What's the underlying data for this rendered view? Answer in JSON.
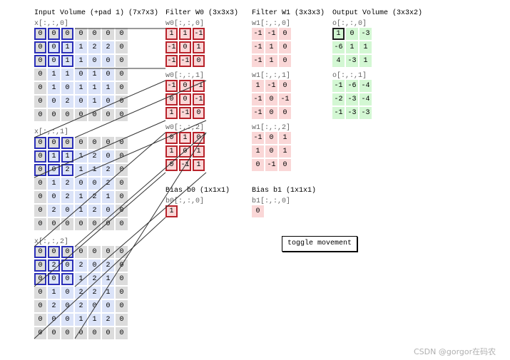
{
  "input": {
    "title": "Input Volume (+pad 1) (7x7x3)",
    "slices": [
      {
        "label": "x[:,:,0]",
        "values": [
          [
            0,
            0,
            0,
            0,
            0,
            0,
            0
          ],
          [
            0,
            0,
            1,
            1,
            2,
            2,
            0
          ],
          [
            0,
            0,
            1,
            1,
            0,
            0,
            0
          ],
          [
            0,
            1,
            1,
            0,
            1,
            0,
            0
          ],
          [
            0,
            1,
            0,
            1,
            1,
            1,
            0
          ],
          [
            0,
            0,
            2,
            0,
            1,
            0,
            0
          ],
          [
            0,
            0,
            0,
            0,
            0,
            0,
            0
          ]
        ]
      },
      {
        "label": "x[:,:,1]",
        "values": [
          [
            0,
            0,
            0,
            0,
            0,
            0,
            0
          ],
          [
            0,
            1,
            1,
            1,
            2,
            0,
            0
          ],
          [
            0,
            0,
            2,
            1,
            1,
            2,
            0
          ],
          [
            0,
            1,
            2,
            0,
            0,
            2,
            0
          ],
          [
            0,
            0,
            2,
            1,
            2,
            1,
            0
          ],
          [
            0,
            2,
            0,
            1,
            2,
            0,
            0
          ],
          [
            0,
            0,
            0,
            0,
            0,
            0,
            0
          ]
        ]
      },
      {
        "label": "x[:,:,2]",
        "values": [
          [
            0,
            0,
            0,
            0,
            0,
            0,
            0
          ],
          [
            0,
            2,
            0,
            2,
            0,
            2,
            0
          ],
          [
            0,
            0,
            0,
            1,
            2,
            1,
            0
          ],
          [
            0,
            1,
            0,
            2,
            2,
            1,
            0
          ],
          [
            0,
            2,
            0,
            2,
            0,
            0,
            0
          ],
          [
            0,
            0,
            0,
            1,
            1,
            2,
            0
          ],
          [
            0,
            0,
            0,
            0,
            0,
            0,
            0
          ]
        ]
      }
    ]
  },
  "filter_w0": {
    "title": "Filter W0 (3x3x3)",
    "slices": [
      {
        "label": "w0[:,:,0]",
        "values": [
          [
            "1",
            "1",
            "-1"
          ],
          [
            "-1",
            "0",
            "1"
          ],
          [
            "-1",
            "-1",
            "0"
          ]
        ]
      },
      {
        "label": "w0[:,:,1]",
        "values": [
          [
            "-1",
            "0",
            "-1"
          ],
          [
            "0",
            "0",
            "-1"
          ],
          [
            "1",
            "-1",
            "0"
          ]
        ]
      },
      {
        "label": "w0[:,:,2]",
        "values": [
          [
            "0",
            "1",
            "0"
          ],
          [
            "1",
            "0",
            "1"
          ],
          [
            "0",
            "-1",
            "1"
          ]
        ]
      }
    ]
  },
  "filter_w1": {
    "title": "Filter W1 (3x3x3)",
    "slices": [
      {
        "label": "w1[:,:,0]",
        "values": [
          [
            "-1",
            "-1",
            "0"
          ],
          [
            "-1",
            "1",
            "0"
          ],
          [
            "-1",
            "1",
            "0"
          ]
        ]
      },
      {
        "label": "w1[:,:,1]",
        "values": [
          [
            "1",
            "-1",
            "0"
          ],
          [
            "-1",
            "0",
            "-1"
          ],
          [
            "-1",
            "0",
            "0"
          ]
        ]
      },
      {
        "label": "w1[:,:,2]",
        "values": [
          [
            "-1",
            "0",
            "1"
          ],
          [
            "1",
            "0",
            "1"
          ],
          [
            "0",
            "-1",
            "0"
          ]
        ]
      }
    ]
  },
  "bias_b0": {
    "title": "Bias b0 (1x1x1)",
    "label": "b0[:,:,0]",
    "value": "1"
  },
  "bias_b1": {
    "title": "Bias b1 (1x1x1)",
    "label": "b1[:,:,0]",
    "value": "0"
  },
  "output": {
    "title": "Output Volume (3x3x2)",
    "slices": [
      {
        "label": "o[:,:,0]",
        "values": [
          [
            "1",
            "0",
            "-3"
          ],
          [
            "-6",
            "1",
            "1"
          ],
          [
            "4",
            "-3",
            "1"
          ]
        ]
      },
      {
        "label": "o[:,:,1]",
        "values": [
          [
            "-1",
            "-6",
            "-4"
          ],
          [
            "-2",
            "-3",
            "-4"
          ],
          [
            "-1",
            "-3",
            "-3"
          ]
        ]
      }
    ]
  },
  "toggle_label": "toggle movement",
  "watermark": "CSDN @gorgor在码农",
  "colors": {
    "pad": "#dcdcdc",
    "input": "#dbe3f8",
    "weight": "#fad7d7",
    "output": "#d3f7d3",
    "highlight_input": "#2b2fb8",
    "highlight_weight": "#b8232b",
    "highlight_output": "#1e1e1e",
    "connector": "#333333"
  },
  "highlight": {
    "row": 0,
    "col": 0
  }
}
